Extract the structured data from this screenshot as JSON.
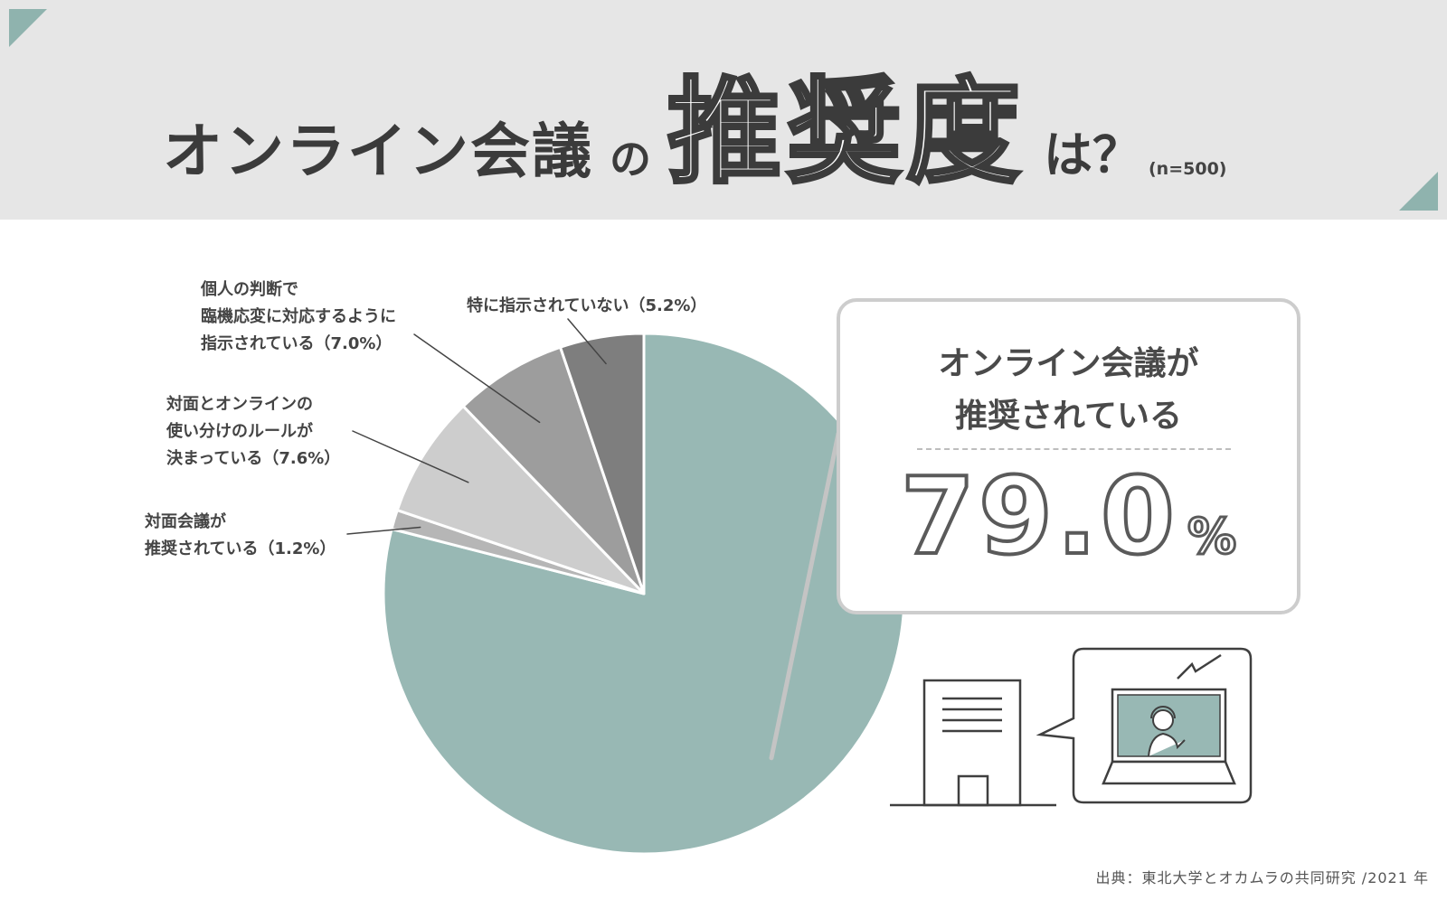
{
  "title": {
    "main": "オンライン会議",
    "particle": "の",
    "emphasis": "推奨度",
    "suffix": "は？",
    "sample": "(n=500)"
  },
  "colors": {
    "accent": "#8fb3ae",
    "slice_main": "#98b8b4",
    "slice_light_gray": "#b6b6b6",
    "slice_lighter_gray": "#cdcdcd",
    "slice_mid_gray": "#9d9d9d",
    "slice_dark_gray": "#7e7e7e"
  },
  "chart_data": {
    "type": "pie",
    "start_angle": "12 o'clock",
    "direction": "clockwise",
    "slices": [
      {
        "label": "オンライン会議が推奨されている",
        "value": 79.0
      },
      {
        "label": "対面会議が推奨されている",
        "value": 1.2
      },
      {
        "label": "対面とオンラインの使い分けのルールが決まっている",
        "value": 7.6
      },
      {
        "label": "個人の判断で臨機応変に対応するように指示されている",
        "value": 7.0
      },
      {
        "label": "特に指示されていない",
        "value": 5.2
      }
    ]
  },
  "labels": {
    "face_to_face": {
      "line1": "対面会議が",
      "line2": "推奨されている（1.2%）"
    },
    "rules": {
      "line1": "対面とオンラインの",
      "line2": "使い分けのルールが",
      "line3": "決まっている（7.6%）"
    },
    "individual": {
      "line1": "個人の判断で",
      "line2": "臨機応変に対応するように",
      "line3": "指示されている（7.0%）"
    },
    "none": {
      "line1": "特に指示されていない（5.2%）"
    }
  },
  "callout": {
    "line1": "オンライン会議が",
    "line2": "推奨されている",
    "value": "79.0",
    "unit": "%"
  },
  "illustration": {
    "building_icon": "office-building-icon",
    "laptop_icon": "laptop-video-call-icon"
  },
  "source": "出典：東北大学とオカムラの共同研究 /2021 年"
}
